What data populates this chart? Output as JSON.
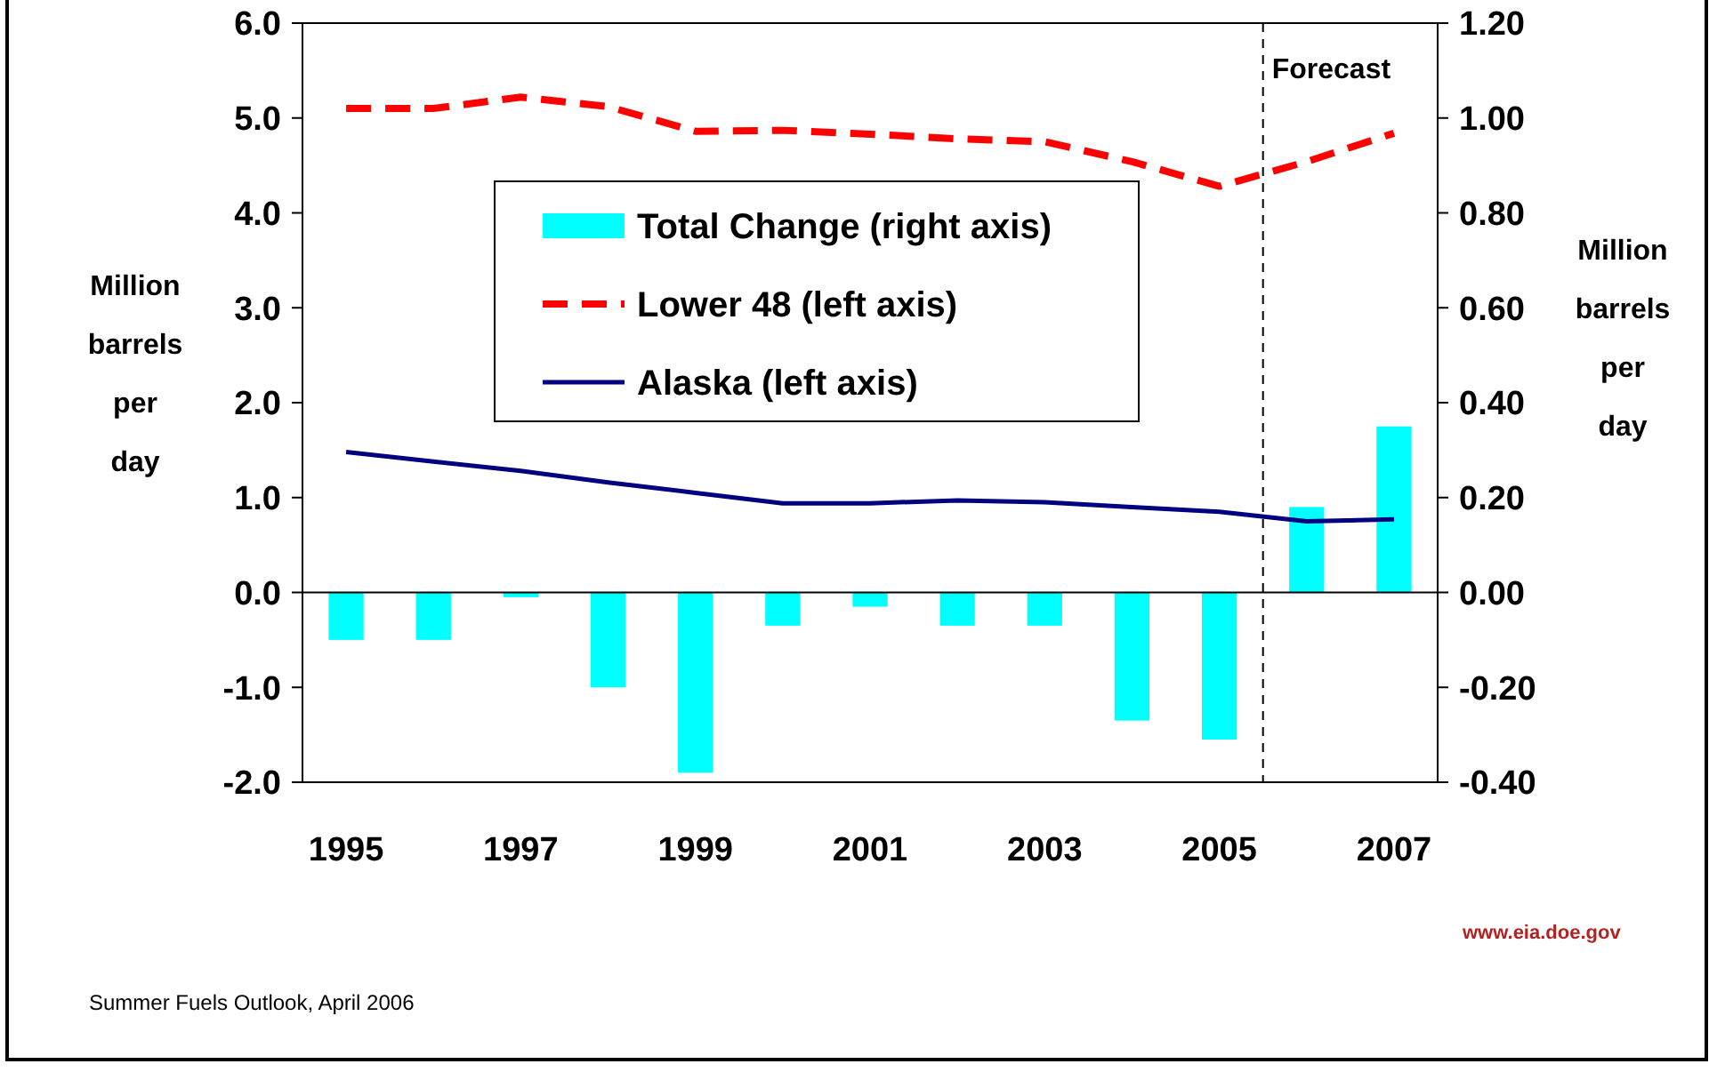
{
  "chart_data": {
    "type": "bar",
    "ylabel": "Million barrels per day",
    "y2label": "Million barrels per day",
    "x": [
      1995,
      1996,
      1997,
      1998,
      1999,
      2000,
      2001,
      2002,
      2003,
      2004,
      2005,
      2006,
      2007
    ],
    "xlim": [
      1994.5,
      2007.5
    ],
    "xticks": [
      1995,
      1997,
      1999,
      2001,
      2003,
      2005,
      2007
    ],
    "ylim": [
      -2,
      6
    ],
    "yticks": [
      {
        "value": -2,
        "label": "-2.0"
      },
      {
        "value": -1,
        "label": "-1.0"
      },
      {
        "value": 0,
        "label": "0.0"
      },
      {
        "value": 1,
        "label": "1.0"
      },
      {
        "value": 2,
        "label": "2.0"
      },
      {
        "value": 3,
        "label": "3.0"
      },
      {
        "value": 4,
        "label": "4.0"
      },
      {
        "value": 5,
        "label": "5.0"
      },
      {
        "value": 6,
        "label": "6.0"
      }
    ],
    "y2lim": [
      -0.4,
      1.2
    ],
    "y2ticks": [
      {
        "value": -0.4,
        "label": "-0.40"
      },
      {
        "value": -0.2,
        "label": "-0.20"
      },
      {
        "value": 0,
        "label": "0.00"
      },
      {
        "value": 0.2,
        "label": "0.20"
      },
      {
        "value": 0.4,
        "label": "0.40"
      },
      {
        "value": 0.6,
        "label": "0.60"
      },
      {
        "value": 0.8,
        "label": "0.80"
      },
      {
        "value": 1,
        "label": "1.00"
      },
      {
        "value": 1.2,
        "label": "1.20"
      }
    ],
    "series": [
      {
        "name": "Total Change (right axis)",
        "type": "bar",
        "axis": "y2",
        "color": "#00ffff",
        "values": [
          -0.1,
          -0.1,
          -0.01,
          -0.2,
          -0.38,
          -0.07,
          -0.03,
          -0.07,
          -0.07,
          -0.27,
          -0.31,
          0.18,
          0.35
        ]
      },
      {
        "name": "Lower 48 (left axis)",
        "type": "line",
        "line_style": "dashed",
        "color": "#ff0000",
        "values": [
          5.1,
          5.1,
          5.22,
          5.12,
          4.86,
          4.87,
          4.83,
          4.78,
          4.75,
          4.54,
          4.28,
          4.54,
          4.84
        ]
      },
      {
        "name": "Alaska (left axis)",
        "type": "line",
        "line_style": "solid",
        "color": "#000080",
        "values": [
          1.48,
          1.38,
          1.28,
          1.16,
          1.05,
          0.94,
          0.94,
          0.97,
          0.95,
          0.9,
          0.85,
          0.75,
          0.77
        ]
      }
    ],
    "ref_lines": [
      {
        "axis": "x",
        "value": 2005.5,
        "label": "Forecast",
        "color": "#000000",
        "line_style": "dashed"
      },
      {
        "axis": "y",
        "value": 0,
        "color": "#000000"
      }
    ],
    "legend": "top",
    "grid": false,
    "annotations": [
      "Summer Fuels Outlook, April 2006",
      "www.eia.doe.gov"
    ]
  }
}
